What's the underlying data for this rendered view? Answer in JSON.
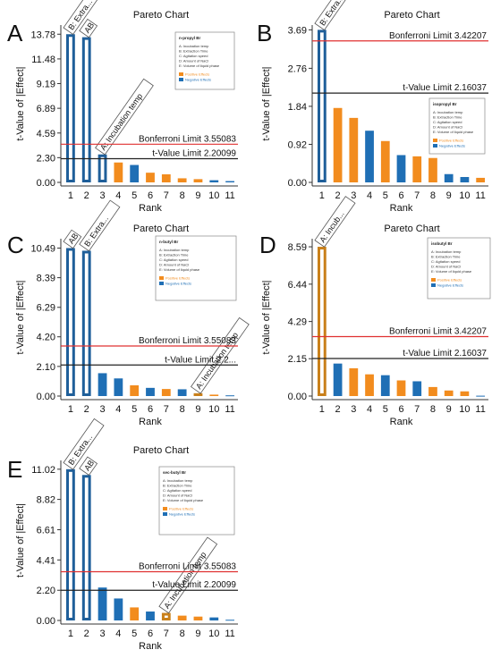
{
  "colors": {
    "positive": "#f28c1e",
    "negative": "#1f6fb5",
    "highlight_positive": "#c9801a",
    "highlight_negative": "#1f5f9a",
    "bonferroni_line": "#e03030",
    "tvalue_line": "#222222",
    "olive": "#b59a1c",
    "purple": "#4a47c8"
  },
  "chart_data": [
    {
      "id": "A",
      "panel_label": "A",
      "type": "bar",
      "title": "Pareto Chart",
      "xlabel": "Rank",
      "ylabel": "t-Value of |Effect|",
      "categories": [
        "1",
        "2",
        "3",
        "4",
        "5",
        "6",
        "7",
        "8",
        "9",
        "10",
        "11"
      ],
      "values": [
        13.78,
        13.5,
        2.6,
        1.85,
        1.62,
        0.9,
        0.75,
        0.38,
        0.3,
        0.2,
        0.12
      ],
      "signs": [
        "neg",
        "neg",
        "neg",
        "pos",
        "neg",
        "pos",
        "pos",
        "pos",
        "pos",
        "neg",
        "neg"
      ],
      "bar_labels": [
        "B: Extra...",
        "AB",
        "A: Incubation temp",
        "",
        "",
        "",
        "",
        "",
        "",
        "",
        ""
      ],
      "yticks": [
        0.0,
        2.3,
        4.59,
        6.89,
        9.19,
        11.48,
        13.78
      ],
      "ytick_labels": [
        "0.00",
        "2.30",
        "4.59",
        "6.89",
        "9.19",
        "11.48",
        "13.78"
      ],
      "ylim": [
        0,
        14.3
      ],
      "bonferroni": 3.55083,
      "bonferroni_label": "Bonferroni Limit 3.55083",
      "tvalue": 2.20099,
      "tvalue_label": "t-Value Limit 2.20099",
      "legend": {
        "title": "n-propyl Br",
        "items": [
          "A: Incubation temp",
          "B: Extraction Time",
          "C: Agitation speed",
          "D: Amount of NaCl",
          "E: Volume of liquid phase"
        ],
        "effects": [
          "Positive Effects",
          "Negative Effects"
        ]
      }
    },
    {
      "id": "B",
      "panel_label": "B",
      "type": "bar",
      "title": "Pareto Chart",
      "xlabel": "Rank",
      "ylabel": "t-Value of |Effect|",
      "categories": [
        "1",
        "2",
        "3",
        "4",
        "5",
        "6",
        "7",
        "8",
        "9",
        "10",
        "11"
      ],
      "values": [
        3.69,
        1.8,
        1.56,
        1.25,
        1.0,
        0.66,
        0.63,
        0.59,
        0.2,
        0.13,
        0.11
      ],
      "signs": [
        "neg",
        "pos",
        "pos",
        "neg",
        "pos",
        "neg",
        "pos",
        "pos",
        "neg",
        "neg",
        "pos"
      ],
      "bar_labels": [
        "B: Extra...",
        "",
        "",
        "",
        "",
        "",
        "",
        "",
        "",
        "",
        ""
      ],
      "yticks": [
        0.0,
        0.92,
        1.84,
        2.76,
        3.69
      ],
      "ytick_labels": [
        "0.00",
        "0.92",
        "1.84",
        "2.76",
        "3.69"
      ],
      "ylim": [
        0,
        3.72
      ],
      "bonferroni": 3.42207,
      "bonferroni_label": "Bonferroni Limit 3.42207",
      "tvalue": 2.16037,
      "tvalue_label": "t-Value Limit 2.16037",
      "legend": {
        "title": "isopropyl Br",
        "items": [
          "A: Incubation temp",
          "B: Extraction Time",
          "C: Agitation speed",
          "D: Amount of NaCl",
          "E: Volume of liquid phase"
        ],
        "effects": [
          "Positive Effects",
          "Negative Effects"
        ]
      }
    },
    {
      "id": "C",
      "panel_label": "C",
      "type": "bar",
      "title": "Pareto Chart",
      "xlabel": "Rank",
      "ylabel": "t-Value of |Effect|",
      "categories": [
        "1",
        "2",
        "3",
        "4",
        "5",
        "6",
        "7",
        "8",
        "9",
        "10",
        "11"
      ],
      "values": [
        10.49,
        10.3,
        1.62,
        1.25,
        0.76,
        0.58,
        0.5,
        0.48,
        0.2,
        0.1,
        0.05
      ],
      "signs": [
        "neg",
        "neg",
        "neg",
        "neg",
        "pos",
        "neg",
        "pos",
        "neg",
        "pos",
        "pos",
        "neg"
      ],
      "bar_labels": [
        "AB",
        "B: Extra...",
        "",
        "",
        "",
        "",
        "",
        "",
        "A: Incubation temp",
        "",
        ""
      ],
      "yticks": [
        0.0,
        2.1,
        4.2,
        6.29,
        8.39,
        10.49
      ],
      "ytick_labels": [
        "0.00",
        "2.10",
        "4.20",
        "6.29",
        "8.39",
        "10.49"
      ],
      "ylim": [
        0,
        10.9
      ],
      "bonferroni": 3.55083,
      "bonferroni_label": "Bonferroni Limit 3.55083",
      "tvalue": 2.20099,
      "tvalue_label": "t-Value Limit 2.2...",
      "legend": {
        "title": "n-butyl Br",
        "items": [
          "A: Incubation temp",
          "B: Extraction Time",
          "C: Agitation speed",
          "D: Amount of NaCl",
          "E: Volume of liquid phase"
        ],
        "effects": [
          "Positive Effects",
          "Negative Effects"
        ]
      }
    },
    {
      "id": "D",
      "panel_label": "D",
      "type": "bar",
      "title": "Pareto Chart",
      "xlabel": "Rank",
      "ylabel": "t-Value of |Effect|",
      "categories": [
        "1",
        "2",
        "3",
        "4",
        "5",
        "6",
        "7",
        "8",
        "9",
        "10",
        "11"
      ],
      "values": [
        8.59,
        1.87,
        1.6,
        1.25,
        1.2,
        0.9,
        0.85,
        0.52,
        0.32,
        0.27,
        0.02
      ],
      "signs": [
        "pos",
        "neg",
        "pos",
        "pos",
        "neg",
        "pos",
        "neg",
        "pos",
        "pos",
        "pos",
        "neg"
      ],
      "bar_labels": [
        "A: Incub...",
        "",
        "",
        "",
        "",
        "",
        "",
        "",
        "",
        "",
        ""
      ],
      "yticks": [
        0.0,
        2.15,
        4.29,
        6.44,
        8.59
      ],
      "ytick_labels": [
        "0.00",
        "2.15",
        "4.29",
        "6.44",
        "8.59"
      ],
      "ylim": [
        0,
        8.85
      ],
      "bonferroni": 3.42207,
      "bonferroni_label": "Bonferroni Limit 3.42207",
      "tvalue": 2.16037,
      "tvalue_label": "t-Value Limit 2.16037",
      "legend": {
        "title": "isobutyl Br",
        "items": [
          "A: Incubation temp",
          "B: Extraction Time",
          "C: Agitation speed",
          "D: Amount of NaCl",
          "E: Volume of liquid phase"
        ],
        "effects": [
          "Positive Effects",
          "Negative Effects"
        ]
      }
    },
    {
      "id": "E",
      "panel_label": "E",
      "type": "bar",
      "title": "Pareto Chart",
      "xlabel": "Rank",
      "ylabel": "t-Value of |Effect|",
      "categories": [
        "1",
        "2",
        "3",
        "4",
        "5",
        "6",
        "7",
        "8",
        "9",
        "10",
        "11"
      ],
      "values": [
        11.02,
        10.6,
        2.4,
        1.6,
        0.95,
        0.65,
        0.55,
        0.35,
        0.28,
        0.22,
        0.05
      ],
      "signs": [
        "neg",
        "neg",
        "neg",
        "neg",
        "pos",
        "neg",
        "pos",
        "pos",
        "pos",
        "neg",
        "neg"
      ],
      "bar_labels": [
        "B: Extra...",
        "AB",
        "",
        "",
        "",
        "",
        "A: Incubation temp",
        "",
        "",
        "",
        ""
      ],
      "yticks": [
        0.0,
        2.2,
        4.41,
        6.61,
        8.82,
        11.02
      ],
      "ytick_labels": [
        "0.00",
        "2.20",
        "4.41",
        "6.61",
        "8.82",
        "11.02"
      ],
      "ylim": [
        0,
        11.4
      ],
      "bonferroni": 3.55083,
      "bonferroni_label": "Bonferroni Limit 3.55083",
      "tvalue": 2.20099,
      "tvalue_label": "t-Value Limit 2.20099",
      "legend": {
        "title": "sec-butyl Br",
        "items": [
          "A: Incubation temp",
          "B: Extraction Time",
          "C: Agitation speed",
          "D: Amount of NaCl",
          "E: Volume of liquid phase"
        ],
        "effects": [
          "Positive Effects",
          "Negative Effects"
        ]
      }
    }
  ]
}
